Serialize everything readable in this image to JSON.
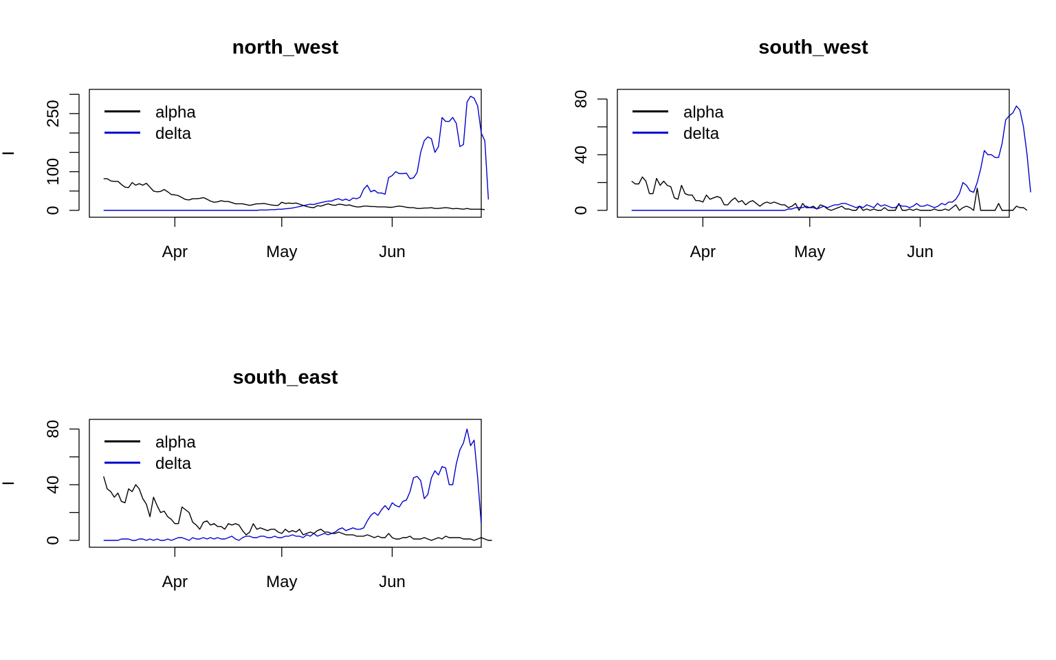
{
  "chart_data": [
    {
      "type": "line",
      "title": "north_west",
      "ylabel": "I",
      "xlim": [
        "2021-03-08",
        "2021-06-26"
      ],
      "ylim": [
        0,
        295
      ],
      "y_ticks": [
        0,
        100,
        250
      ],
      "y_minor_ticks": [
        50,
        150,
        200,
        300
      ],
      "x_ticks": [
        {
          "label": "Apr",
          "date": "2021-04-01"
        },
        {
          "label": "May",
          "date": "2021-05-01"
        },
        {
          "label": "Jun",
          "date": "2021-06-01"
        }
      ],
      "legend": {
        "position": "top-left",
        "items": [
          {
            "name": "alpha",
            "color": "#000000"
          },
          {
            "name": "delta",
            "color": "#0000CD"
          }
        ]
      },
      "series": [
        {
          "name": "alpha",
          "color": "#000000",
          "start": "2021-03-12",
          "values": [
            82,
            82,
            76,
            75,
            75,
            67,
            60,
            59,
            72,
            65,
            69,
            65,
            70,
            60,
            50,
            48,
            49,
            54,
            48,
            41,
            40,
            38,
            33,
            28,
            27,
            30,
            30,
            31,
            33,
            29,
            24,
            21,
            22,
            25,
            23,
            23,
            20,
            17,
            17,
            17,
            15,
            13,
            15,
            17,
            17,
            18,
            16,
            14,
            13,
            13,
            21,
            18,
            19,
            18,
            19,
            16,
            13,
            10,
            8,
            7,
            12,
            11,
            14,
            17,
            14,
            13,
            16,
            15,
            13,
            14,
            11,
            9,
            9,
            11,
            11,
            10,
            10,
            9,
            9,
            9,
            8,
            8,
            10,
            11,
            10,
            8,
            7,
            7,
            5,
            5,
            6,
            6,
            7,
            5,
            5,
            6,
            7,
            6,
            4,
            5,
            4,
            3,
            5,
            3,
            3,
            3,
            3,
            2
          ]
        },
        {
          "name": "delta",
          "color": "#0000CD",
          "start": "2021-03-12",
          "values": [
            0,
            0,
            0,
            0,
            0,
            0,
            0,
            0,
            0,
            0,
            0,
            0,
            0,
            0,
            0,
            0,
            0,
            0,
            0,
            0,
            0,
            0,
            0,
            0,
            0,
            0,
            0,
            0,
            0,
            0,
            0,
            0,
            0,
            0,
            0,
            0,
            0,
            0,
            0,
            0,
            0,
            0,
            0,
            0,
            1,
            1,
            1,
            2,
            2,
            3,
            3,
            4,
            5,
            6,
            8,
            10,
            12,
            14,
            16,
            15,
            18,
            20,
            22,
            24,
            24,
            28,
            30,
            26,
            29,
            25,
            32,
            30,
            34,
            55,
            65,
            48,
            52,
            45,
            45,
            42,
            85,
            90,
            100,
            95,
            95,
            96,
            82,
            84,
            98,
            150,
            180,
            190,
            185,
            150,
            165,
            240,
            230,
            230,
            240,
            225,
            165,
            170,
            280,
            295,
            290,
            270,
            200,
            180,
            28
          ]
        }
      ]
    },
    {
      "type": "line",
      "title": "south_west",
      "ylabel": "I",
      "xlim": [
        "2021-03-08",
        "2021-06-26"
      ],
      "ylim": [
        0,
        82
      ],
      "y_ticks": [
        0,
        40,
        80
      ],
      "y_minor_ticks": [
        20,
        60
      ],
      "x_ticks": [
        {
          "label": "Apr",
          "date": "2021-04-01"
        },
        {
          "label": "May",
          "date": "2021-05-01"
        },
        {
          "label": "Jun",
          "date": "2021-06-01"
        }
      ],
      "legend": {
        "position": "top-left",
        "items": [
          {
            "name": "alpha",
            "color": "#000000"
          },
          {
            "name": "delta",
            "color": "#0000CD"
          }
        ]
      },
      "series": [
        {
          "name": "alpha",
          "color": "#000000",
          "start": "2021-03-12",
          "values": [
            21,
            19,
            19,
            24,
            21,
            12,
            12,
            23,
            18,
            21,
            18,
            17,
            9,
            8,
            18,
            12,
            11,
            11,
            7,
            7,
            6,
            11,
            8,
            9,
            10,
            9,
            4,
            4,
            7,
            9,
            6,
            7,
            4,
            6,
            7,
            5,
            3,
            5,
            6,
            5,
            6,
            5,
            4,
            4,
            2,
            3,
            5,
            0,
            5,
            2,
            2,
            3,
            1,
            4,
            3,
            1,
            0,
            1,
            2,
            3,
            1,
            1,
            0,
            0,
            3,
            0,
            1,
            0,
            1,
            0,
            0,
            2,
            0,
            0,
            0,
            5,
            0,
            0,
            1,
            0,
            1,
            0,
            0,
            0,
            0,
            1,
            0,
            0,
            1,
            0,
            2,
            4,
            0,
            2,
            3,
            2,
            0,
            16,
            0,
            0,
            0,
            0,
            0,
            5,
            0,
            0,
            0,
            0,
            3,
            2,
            2,
            0
          ]
        },
        {
          "name": "delta",
          "color": "#0000CD",
          "start": "2021-03-12",
          "values": [
            0,
            0,
            0,
            0,
            0,
            0,
            0,
            0,
            0,
            0,
            0,
            0,
            0,
            0,
            0,
            0,
            0,
            0,
            0,
            0,
            0,
            0,
            0,
            0,
            0,
            0,
            0,
            0,
            0,
            0,
            0,
            0,
            0,
            0,
            0,
            0,
            0,
            0,
            0,
            0,
            0,
            0,
            0,
            0,
            1,
            1,
            2,
            2,
            2,
            3,
            2,
            2,
            1,
            2,
            3,
            2,
            3,
            4,
            4,
            5,
            5,
            4,
            3,
            2,
            3,
            2,
            4,
            3,
            2,
            5,
            3,
            4,
            3,
            2,
            2,
            4,
            3,
            3,
            2,
            3,
            5,
            3,
            3,
            4,
            3,
            2,
            3,
            5,
            4,
            6,
            6,
            8,
            12,
            20,
            18,
            14,
            13,
            20,
            30,
            43,
            40,
            40,
            38,
            38,
            48,
            65,
            68,
            70,
            75,
            72,
            60,
            40,
            13
          ]
        }
      ]
    },
    {
      "type": "line",
      "title": "south_east",
      "ylabel": "I",
      "xlim": [
        "2021-03-08",
        "2021-06-26"
      ],
      "ylim": [
        0,
        82
      ],
      "y_ticks": [
        0,
        40,
        80
      ],
      "y_minor_ticks": [
        20,
        60
      ],
      "x_ticks": [
        {
          "label": "Apr",
          "date": "2021-04-01"
        },
        {
          "label": "May",
          "date": "2021-05-01"
        },
        {
          "label": "Jun",
          "date": "2021-06-01"
        }
      ],
      "legend": {
        "position": "top-left",
        "items": [
          {
            "name": "alpha",
            "color": "#000000"
          },
          {
            "name": "delta",
            "color": "#0000CD"
          }
        ]
      },
      "series": [
        {
          "name": "alpha",
          "color": "#000000",
          "start": "2021-03-12",
          "values": [
            46,
            37,
            35,
            31,
            34,
            28,
            27,
            37,
            35,
            40,
            37,
            30,
            26,
            17,
            31,
            25,
            20,
            21,
            17,
            15,
            12,
            12,
            24,
            22,
            20,
            13,
            11,
            8,
            13,
            14,
            11,
            12,
            10,
            10,
            8,
            12,
            11,
            12,
            11,
            7,
            4,
            6,
            12,
            8,
            9,
            8,
            7,
            8,
            8,
            6,
            5,
            8,
            6,
            7,
            6,
            8,
            4,
            5,
            6,
            5,
            7,
            8,
            6,
            6,
            5,
            5,
            6,
            5,
            4,
            4,
            4,
            3,
            3,
            3,
            4,
            3,
            2,
            3,
            2,
            2,
            5,
            2,
            1,
            1,
            2,
            2,
            3,
            1,
            1,
            1,
            2,
            1,
            0,
            1,
            2,
            1,
            3,
            2,
            2,
            2,
            2,
            1,
            1,
            1,
            0,
            1,
            2,
            1,
            0,
            0
          ]
        },
        {
          "name": "delta",
          "color": "#0000CD",
          "start": "2021-03-12",
          "values": [
            0,
            0,
            0,
            0,
            0,
            1,
            1,
            1,
            0,
            0,
            1,
            1,
            0,
            1,
            0,
            1,
            0,
            0,
            1,
            0,
            1,
            2,
            2,
            1,
            0,
            2,
            1,
            1,
            2,
            1,
            2,
            1,
            2,
            1,
            1,
            2,
            3,
            1,
            0,
            2,
            3,
            3,
            2,
            2,
            3,
            3,
            2,
            2,
            3,
            2,
            2,
            3,
            3,
            4,
            3,
            3,
            2,
            4,
            3,
            5,
            3,
            4,
            5,
            4,
            5,
            6,
            8,
            9,
            7,
            8,
            9,
            8,
            8,
            9,
            14,
            18,
            20,
            18,
            22,
            25,
            22,
            27,
            25,
            24,
            28,
            29,
            35,
            45,
            46,
            43,
            30,
            33,
            45,
            50,
            47,
            53,
            52,
            40,
            40,
            55,
            65,
            70,
            80,
            68,
            72,
            45,
            12
          ]
        }
      ]
    }
  ]
}
